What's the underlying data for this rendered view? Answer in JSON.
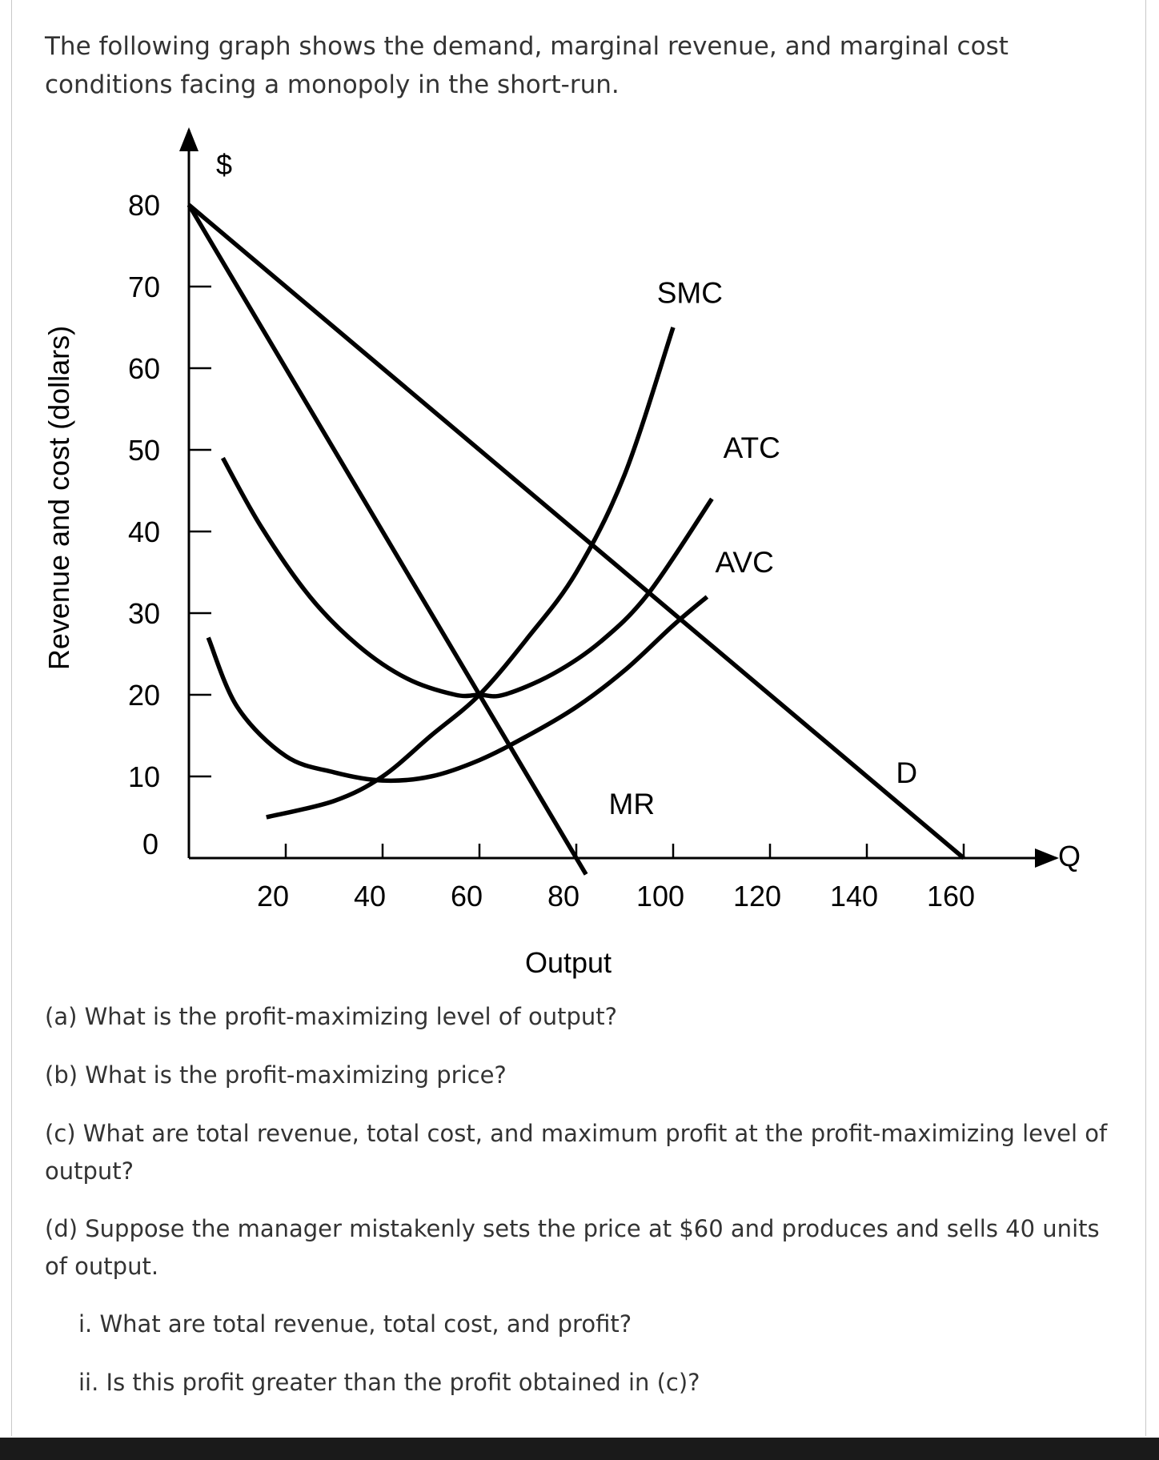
{
  "intro": "The following graph shows the demand, marginal revenue, and marginal cost conditions facing a monopoly in the short-run.",
  "chart_data": {
    "type": "line",
    "xlabel": "Output",
    "ylabel": "Revenue and cost (dollars)",
    "y_unit_label": "$",
    "x_axis_end_label": "Q",
    "origin_label": "0",
    "xlim": [
      0,
      160
    ],
    "ylim": [
      0,
      80
    ],
    "x_ticks": [
      20,
      40,
      60,
      80,
      100,
      120,
      140,
      160
    ],
    "y_ticks": [
      10,
      20,
      30,
      40,
      50,
      60,
      70,
      80
    ],
    "x_tick_labels": [
      "20",
      "40",
      "60",
      "80",
      "100",
      "120",
      "140",
      "160"
    ],
    "y_tick_labels": [
      "10",
      "20",
      "30",
      "40",
      "50",
      "60",
      "70",
      "80"
    ],
    "series": [
      {
        "name": "D",
        "x": [
          0,
          160
        ],
        "y": [
          80,
          0
        ]
      },
      {
        "name": "MR",
        "x": [
          0,
          80,
          82
        ],
        "y": [
          80,
          0,
          -2
        ]
      },
      {
        "name": "SMC",
        "x": [
          16,
          30,
          40,
          50,
          60,
          70,
          80,
          90,
          100
        ],
        "y": [
          5,
          7,
          10,
          15,
          20,
          27,
          35,
          47,
          65
        ]
      },
      {
        "name": "ATC",
        "x": [
          7,
          15,
          25,
          35,
          45,
          55,
          60,
          65,
          75,
          85,
          95,
          108
        ],
        "y": [
          49,
          40.5,
          32,
          26,
          22,
          20,
          20,
          20,
          22.5,
          26.5,
          32.5,
          44
        ]
      },
      {
        "name": "AVC",
        "x": [
          4,
          10,
          20,
          30,
          40,
          50,
          60,
          70,
          80,
          90,
          100,
          107
        ],
        "y": [
          27,
          18.5,
          12.5,
          10.5,
          9.5,
          10,
          12,
          15,
          18.5,
          23,
          28.5,
          32
        ]
      }
    ]
  },
  "questions": {
    "a": "(a) What is the profit-maximizing level of output?",
    "b": "(b) What is the profit-maximizing price?",
    "c": "(c) What are total revenue, total cost, and maximum profit at the profit-maximizing level of output?",
    "d": "(d) Suppose the manager mistakenly sets the price at $60 and produces and sells 40 units of output.",
    "d_i": "i. What are total revenue, total cost, and profit?",
    "d_ii": "ii. Is this profit greater than the profit obtained in (c)?"
  }
}
